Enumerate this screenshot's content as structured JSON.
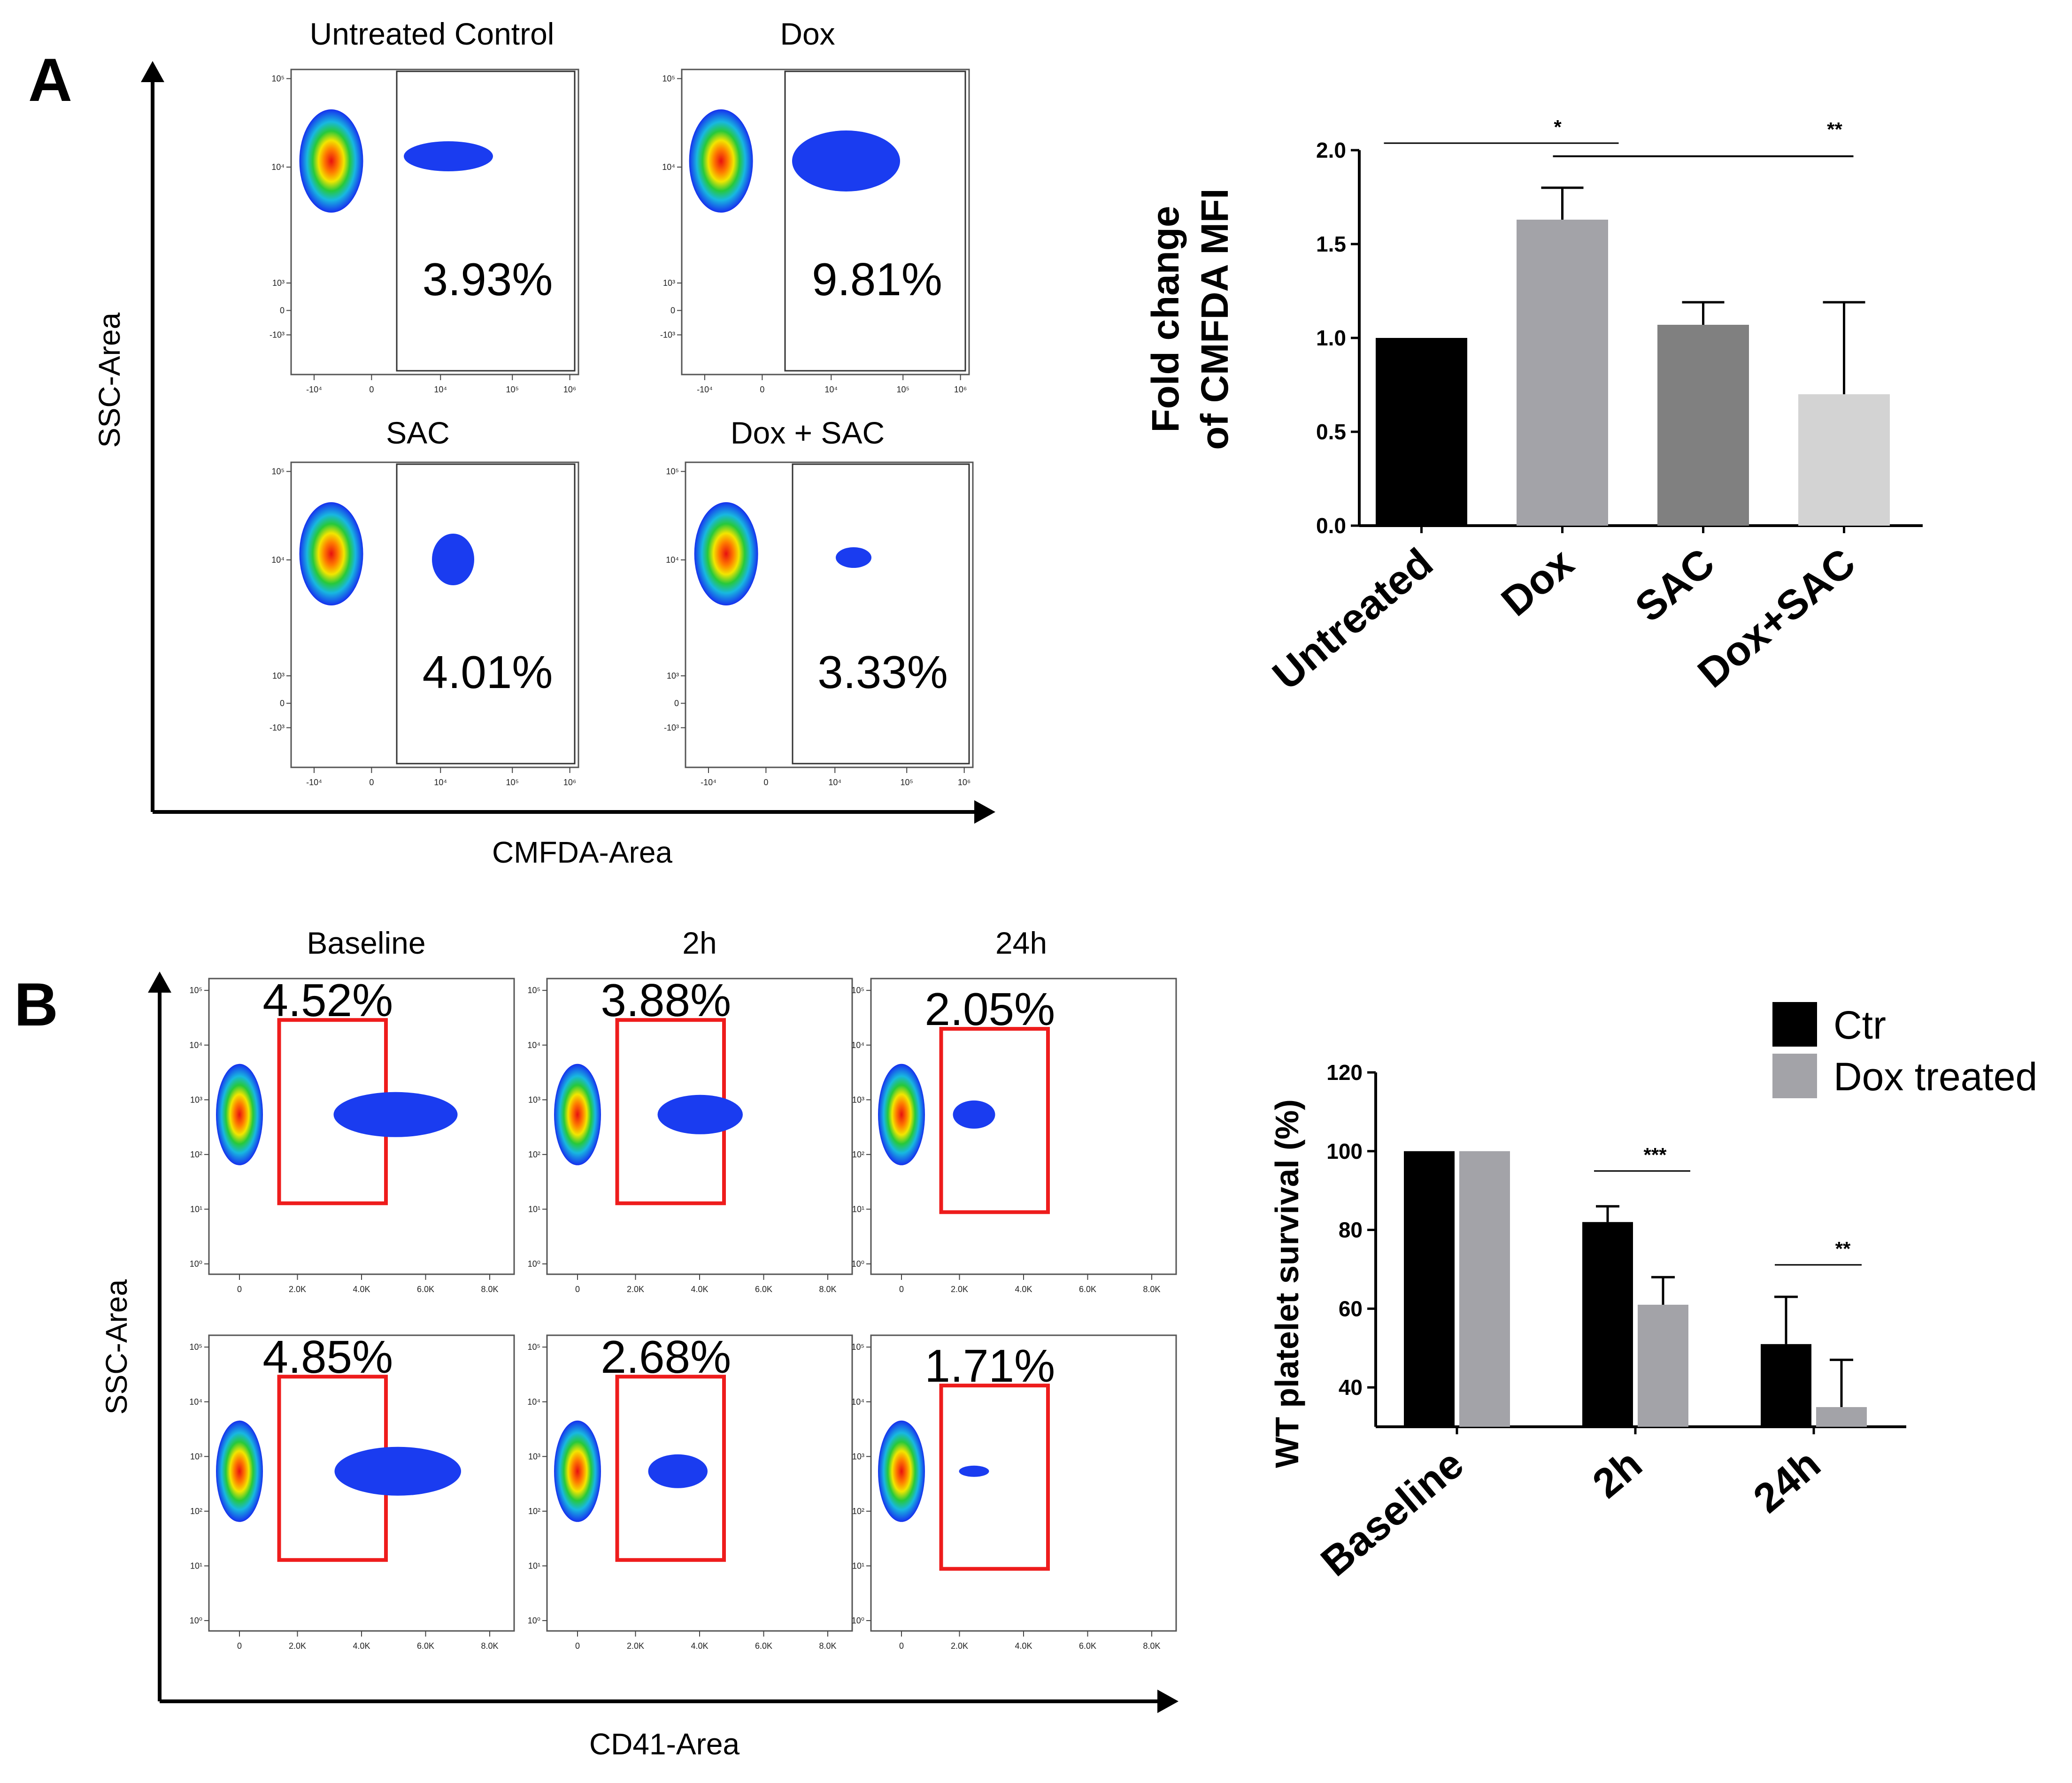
{
  "panelA": {
    "label": "A",
    "x_axis_title": "CMFDA-Area",
    "y_axis_title": "SSC-Area",
    "plots": [
      {
        "title": "Untreated Control",
        "percent": "3.93%"
      },
      {
        "title": "Dox",
        "percent": "9.81%"
      },
      {
        "title": "SAC",
        "percent": "4.01%"
      },
      {
        "title": "Dox + SAC",
        "percent": "3.33%"
      }
    ],
    "x_ticks": [
      "-10⁴",
      "0",
      "10⁴",
      "10⁵",
      "10⁶"
    ],
    "y_ticks": [
      "10⁵",
      "10⁴",
      "10³",
      "0",
      "-10³"
    ]
  },
  "panelB": {
    "label": "B",
    "x_axis_title": "CD41-Area",
    "y_axis_title": "SSC-Area",
    "column_titles": [
      "Baseline",
      "2h",
      "24h"
    ],
    "plots": [
      {
        "percent": "4.52%"
      },
      {
        "percent": "3.88%"
      },
      {
        "percent": "2.05%"
      },
      {
        "percent": "4.85%"
      },
      {
        "percent": "2.68%"
      },
      {
        "percent": "1.71%"
      }
    ],
    "x_ticks": [
      "0",
      "2.0K",
      "4.0K",
      "6.0K",
      "8.0K"
    ],
    "y_ticks": [
      "10⁵",
      "10⁴",
      "10³",
      "10²",
      "10¹",
      "10⁰"
    ]
  },
  "colors": {
    "black_bar": "#000000",
    "dox_bar": "#a3a3a8",
    "sac_bar": "#808080",
    "doxsac_bar": "#d3d3d3",
    "gate_red": "#ee1c1c",
    "event_blue": "#1a3cf0"
  },
  "chart_data": [
    {
      "type": "bar",
      "title": "",
      "categories": [
        "Untreated",
        "Dox",
        "SAC",
        "Dox+SAC"
      ],
      "values": [
        1.0,
        1.63,
        1.07,
        0.7
      ],
      "errors": [
        0.0,
        0.17,
        0.12,
        0.49
      ],
      "ylabel_line1": "Fold change",
      "ylabel_line2": "of  CMFDA MFI",
      "xlabel": "",
      "ylim": [
        0,
        2.0
      ],
      "yticks": [
        "0.0",
        "0.5",
        "1.0",
        "1.5",
        "2.0"
      ],
      "significance": [
        {
          "label": "*",
          "from": "Untreated",
          "to": "Dox"
        },
        {
          "label": "**",
          "from": "Dox",
          "to": "Dox+SAC"
        }
      ]
    },
    {
      "type": "bar",
      "title": "",
      "categories": [
        "Baseline",
        "2h",
        "24h"
      ],
      "series": [
        {
          "name": "Ctr",
          "values": [
            100,
            82,
            51
          ],
          "errors": [
            0,
            4,
            12
          ]
        },
        {
          "name": "Dox treated",
          "values": [
            100,
            61,
            35
          ],
          "errors": [
            0,
            7,
            12
          ]
        }
      ],
      "ylabel": "WT platelet survival (%)",
      "xlabel": "",
      "ylim": [
        30,
        120
      ],
      "yticks": [
        "40",
        "60",
        "80",
        "100",
        "120"
      ],
      "legend_position": "top-right",
      "significance": [
        {
          "label": "***",
          "group": "2h"
        },
        {
          "label": "**",
          "group": "24h"
        }
      ]
    }
  ]
}
